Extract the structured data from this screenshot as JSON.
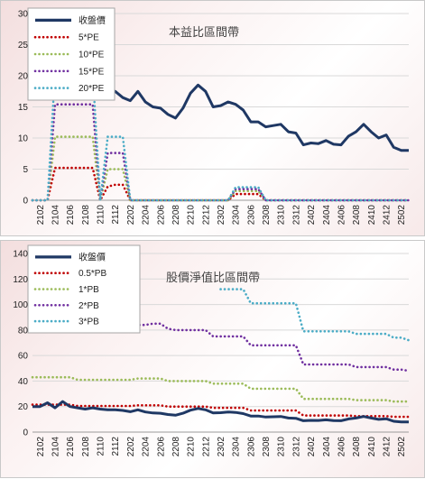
{
  "chart_data": [
    {
      "type": "line",
      "title": "本益比區間帶",
      "x": [
        "2101",
        "2102",
        "2103",
        "2104",
        "2105",
        "2106",
        "2107",
        "2108",
        "2109",
        "2110",
        "2111",
        "2112",
        "2201",
        "2202",
        "2203",
        "2204",
        "2205",
        "2206",
        "2207",
        "2208",
        "2209",
        "2210",
        "2211",
        "2212",
        "2301",
        "2302",
        "2303",
        "2304",
        "2305",
        "2306",
        "2307",
        "2308",
        "2309",
        "2310",
        "2311",
        "2312",
        "2401",
        "2402",
        "2403",
        "2404",
        "2405",
        "2406",
        "2407",
        "2408",
        "2409",
        "2410",
        "2411",
        "2412",
        "2501",
        "2502",
        "2503"
      ],
      "tick_labels": [
        "2102",
        "2104",
        "2106",
        "2108",
        "2110",
        "2112",
        "2202",
        "2204",
        "2206",
        "2208",
        "2210",
        "2212",
        "2302",
        "2304",
        "2306",
        "2308",
        "2310",
        "2312",
        "2402",
        "2404",
        "2406",
        "2408",
        "2410",
        "2412",
        "2502"
      ],
      "ylim": [
        0,
        30
      ],
      "yticks": [
        0,
        5,
        10,
        15,
        20,
        25,
        30
      ],
      "legend_position": "top-left",
      "series": [
        {
          "name": "收盤價",
          "color": "#1f3864",
          "style": "solid",
          "values": [
            null,
            null,
            null,
            null,
            null,
            null,
            null,
            null,
            null,
            null,
            16.5,
            17.5,
            16.5,
            16,
            17.5,
            15.8,
            15,
            14.8,
            13.8,
            13.2,
            14.8,
            17.2,
            18.5,
            17.5,
            15,
            15.2,
            15.8,
            15.4,
            14.5,
            12.6,
            12.6,
            11.8,
            12,
            12.2,
            11,
            10.8,
            8.9,
            9.2,
            9.1,
            9.6,
            9,
            8.9,
            10.3,
            11,
            12.2,
            11,
            10,
            10.5,
            8.5,
            8,
            8
          ]
        },
        {
          "name": "5*PE",
          "color": "#c00000",
          "style": "dotted",
          "values": [
            0,
            0,
            0,
            5.2,
            5.2,
            5.2,
            5.2,
            5.2,
            5.2,
            0,
            2.2,
            2.5,
            2.5,
            0,
            0,
            0,
            0,
            0,
            0,
            0,
            0,
            0,
            0,
            0,
            0,
            0,
            0,
            1.0,
            1.0,
            1.0,
            1.0,
            0,
            0,
            0,
            0,
            0,
            0,
            0,
            0,
            0,
            0,
            0,
            0,
            0,
            0,
            0,
            0,
            0,
            0,
            0,
            0
          ]
        },
        {
          "name": "10*PE",
          "color": "#9bbb59",
          "style": "dotted",
          "values": [
            0,
            0,
            0,
            10.2,
            10.2,
            10.2,
            10.2,
            10.2,
            10.2,
            0,
            5.0,
            5.0,
            5.0,
            0,
            0,
            0,
            0,
            0,
            0,
            0,
            0,
            0,
            0,
            0,
            0,
            0,
            0,
            1.5,
            1.5,
            1.5,
            1.5,
            0,
            0,
            0,
            0,
            0,
            0,
            0,
            0,
            0,
            0,
            0,
            0,
            0,
            0,
            0,
            0,
            0,
            0,
            0,
            0
          ]
        },
        {
          "name": "15*PE",
          "color": "#7030a0",
          "style": "dotted",
          "values": [
            0,
            0,
            0,
            15.4,
            15.4,
            15.4,
            15.4,
            15.4,
            15.4,
            0,
            7.6,
            7.6,
            7.6,
            0,
            0,
            0,
            0,
            0,
            0,
            0,
            0,
            0,
            0,
            0,
            0,
            0,
            0,
            1.8,
            1.8,
            1.8,
            1.8,
            0,
            0,
            0,
            0,
            0,
            0,
            0,
            0,
            0,
            0,
            0,
            0,
            0,
            0,
            0,
            0,
            0,
            0,
            0,
            0
          ]
        },
        {
          "name": "20*PE",
          "color": "#4bacc6",
          "style": "dotted",
          "values": [
            0,
            0,
            0,
            20.6,
            20.6,
            20.6,
            20.6,
            20.6,
            20.6,
            0,
            10.2,
            10.2,
            10.2,
            0,
            0,
            0,
            0,
            0,
            0,
            0,
            0,
            0,
            0,
            0,
            0,
            0,
            0,
            2.1,
            2.1,
            2.1,
            2.1,
            0,
            0,
            0,
            0,
            0,
            0,
            0,
            0,
            0,
            0,
            0,
            0,
            0,
            0,
            0,
            0,
            0,
            0,
            0,
            0
          ]
        }
      ]
    },
    {
      "type": "line",
      "title": "股價淨值比區間帶",
      "x": [
        "2101",
        "2102",
        "2103",
        "2104",
        "2105",
        "2106",
        "2107",
        "2108",
        "2109",
        "2110",
        "2111",
        "2112",
        "2201",
        "2202",
        "2203",
        "2204",
        "2205",
        "2206",
        "2207",
        "2208",
        "2209",
        "2210",
        "2211",
        "2212",
        "2301",
        "2302",
        "2303",
        "2304",
        "2305",
        "2306",
        "2307",
        "2308",
        "2309",
        "2310",
        "2311",
        "2312",
        "2401",
        "2402",
        "2403",
        "2404",
        "2405",
        "2406",
        "2407",
        "2408",
        "2409",
        "2410",
        "2411",
        "2412",
        "2501",
        "2502",
        "2503"
      ],
      "tick_labels": [
        "2102",
        "2104",
        "2106",
        "2108",
        "2110",
        "2112",
        "2202",
        "2204",
        "2206",
        "2208",
        "2210",
        "2212",
        "2302",
        "2304",
        "2306",
        "2308",
        "2310",
        "2312",
        "2402",
        "2404",
        "2406",
        "2408",
        "2410",
        "2412",
        "2502"
      ],
      "ylim": [
        0,
        140
      ],
      "yticks": [
        0,
        20,
        40,
        60,
        80,
        100,
        120,
        140
      ],
      "legend_position": "top-left",
      "series": [
        {
          "name": "收盤價",
          "color": "#1f3864",
          "style": "solid",
          "values": [
            20,
            20,
            23,
            19,
            24,
            20,
            19,
            18,
            19,
            18,
            17.5,
            17.5,
            17,
            16,
            17.5,
            15.8,
            15,
            14.8,
            13.8,
            13.2,
            14.8,
            17.2,
            18.5,
            17.5,
            15,
            15.2,
            15.8,
            15.4,
            14.5,
            12.6,
            12.6,
            11.8,
            12,
            12.2,
            11,
            10.8,
            8.9,
            9.2,
            9.1,
            9.6,
            9,
            8.9,
            10.3,
            11,
            12.2,
            11,
            10,
            10.5,
            8.5,
            8,
            8
          ]
        },
        {
          "name": "0.5*PB",
          "color": "#c00000",
          "style": "dotted",
          "values": [
            21.5,
            21.5,
            21.5,
            21.5,
            21.5,
            21.5,
            20.5,
            20.5,
            20.5,
            20.5,
            20.5,
            20.5,
            20.5,
            20.5,
            21,
            21,
            21,
            21,
            20,
            20,
            20,
            20,
            20,
            20,
            19,
            19,
            19,
            19,
            19,
            17,
            17,
            17,
            17,
            17,
            17,
            17,
            13,
            13,
            13,
            13,
            13,
            13,
            13,
            12.5,
            12.5,
            12.5,
            12.5,
            12.5,
            12,
            12,
            12
          ]
        },
        {
          "name": "1*PB",
          "color": "#9bbb59",
          "style": "dotted",
          "values": [
            43,
            43,
            43,
            43,
            43,
            43,
            41,
            41,
            41,
            41,
            41,
            41,
            41,
            41,
            42,
            42,
            42,
            42,
            40,
            40,
            40,
            40,
            40,
            40,
            38,
            38,
            38,
            38,
            38,
            34,
            34,
            34,
            34,
            34,
            34,
            34,
            26,
            26,
            26,
            26,
            26,
            26,
            26,
            25,
            25,
            25,
            25,
            25,
            24,
            24,
            24
          ]
        },
        {
          "name": "2*PB",
          "color": "#7030a0",
          "style": "dotted",
          "values": [
            null,
            null,
            null,
            null,
            null,
            null,
            null,
            null,
            null,
            null,
            null,
            83,
            83,
            83,
            84,
            84,
            85,
            85,
            81,
            80,
            80,
            80,
            80,
            80,
            75,
            75,
            75,
            75,
            75,
            68,
            68,
            68,
            68,
            68,
            68,
            68,
            53,
            53,
            53,
            53,
            53,
            53,
            53,
            51,
            51,
            51,
            51,
            51,
            49,
            49,
            48
          ]
        },
        {
          "name": "3*PB",
          "color": "#4bacc6",
          "style": "dotted",
          "values": [
            null,
            null,
            null,
            null,
            null,
            null,
            null,
            null,
            null,
            null,
            null,
            null,
            null,
            null,
            null,
            null,
            null,
            null,
            null,
            null,
            null,
            null,
            null,
            null,
            null,
            112,
            112,
            112,
            112,
            101,
            101,
            101,
            101,
            101,
            101,
            101,
            79,
            79,
            79,
            79,
            79,
            79,
            79,
            77,
            77,
            77,
            77,
            77,
            74,
            74,
            72
          ]
        }
      ]
    }
  ]
}
